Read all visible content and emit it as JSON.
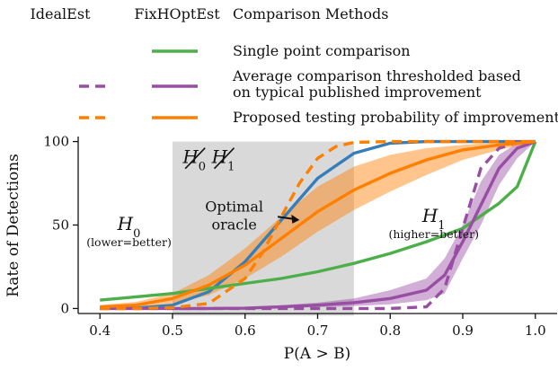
{
  "chart_data": {
    "type": "line",
    "xlabel": "P(A > B)",
    "ylabel": "Rate of Detections",
    "xlim": [
      0.37,
      1.03
    ],
    "ylim": [
      -3,
      103
    ],
    "xticks": [
      "0.4",
      "0.5",
      "0.6",
      "0.7",
      "0.8",
      "0.9",
      "1.0"
    ],
    "yticks": [
      "0",
      "50",
      "100"
    ],
    "grid": false,
    "legend": {
      "placement": "top",
      "column_headers": [
        "IdealEst",
        "FixHOptEst",
        "Comparison Methods"
      ],
      "entries": [
        {
          "label": "Single point comparison",
          "color": "#4daf4a",
          "idealest": false,
          "fixhoptest": true
        },
        {
          "label_lines": [
            "Average comparison thresholded based",
            "on typical published improvement"
          ],
          "color": "#984ea3",
          "idealest": true,
          "fixhoptest": true
        },
        {
          "label": "Proposed testing probability of improvement",
          "color": "#ff7f00",
          "idealest": true,
          "fixhoptest": true
        }
      ]
    },
    "shaded_region": {
      "x_range": [
        0.5,
        0.75
      ],
      "color": "#d9d9d9"
    },
    "region_labels": {
      "h0": {
        "main": "H",
        "sub": "0",
        "note": "(lower=better)",
        "x": 0.44,
        "y": 47
      },
      "h1": {
        "main": "H",
        "sub": "1",
        "note": "(higher=better)",
        "x": 0.86,
        "y": 52
      },
      "struck": {
        "h0_x": 0.53,
        "h1_x": 0.57,
        "y": 87
      }
    },
    "annotation": {
      "lines": [
        "Optimal",
        "oracle"
      ],
      "text_x": 0.585,
      "text_y": 58,
      "arrow_from": [
        0.645,
        55
      ],
      "arrow_to": [
        0.675,
        53
      ]
    },
    "series": [
      {
        "name": "Oracle",
        "color": "#377eb8",
        "style": "solid",
        "x": [
          0.4,
          0.45,
          0.5,
          0.55,
          0.6,
          0.65,
          0.7,
          0.75,
          0.8,
          0.85,
          0.9,
          0.95,
          1.0
        ],
        "y": [
          0,
          0.3,
          2,
          10,
          28,
          53,
          78,
          93,
          99,
          100,
          100,
          100,
          100
        ]
      },
      {
        "name": "Single point comparison (FixHOptEst)",
        "color": "#4daf4a",
        "style": "solid",
        "x": [
          0.4,
          0.45,
          0.5,
          0.55,
          0.6,
          0.65,
          0.7,
          0.75,
          0.8,
          0.85,
          0.9,
          0.95,
          0.975,
          1.0
        ],
        "y": [
          5,
          7,
          9,
          12,
          15,
          18,
          22,
          27,
          33,
          40,
          48,
          63,
          73,
          100
        ]
      },
      {
        "name": "Average comparison (FixHOptEst)",
        "color": "#984ea3",
        "style": "solid",
        "x": [
          0.4,
          0.45,
          0.5,
          0.55,
          0.6,
          0.65,
          0.7,
          0.75,
          0.8,
          0.85,
          0.875,
          0.9,
          0.925,
          0.95,
          0.975,
          1.0
        ],
        "y": [
          0,
          0,
          0,
          0,
          0.2,
          1,
          2,
          3.5,
          6,
          11,
          20,
          40,
          62,
          84,
          96,
          100
        ],
        "band_low": [
          0,
          0,
          0,
          0,
          0,
          0.3,
          0.8,
          1.5,
          2.5,
          5,
          9,
          30,
          50,
          74,
          90,
          100
        ],
        "band_high": [
          0,
          0,
          0.3,
          0.6,
          1,
          2,
          3.5,
          6,
          11,
          18,
          30,
          50,
          76,
          92,
          99,
          100
        ]
      },
      {
        "name": "Average comparison (IdealEst)",
        "color": "#984ea3",
        "style": "dashed",
        "x": [
          0.4,
          0.5,
          0.6,
          0.7,
          0.8,
          0.85,
          0.875,
          0.9,
          0.925,
          0.95,
          0.975,
          1.0
        ],
        "y": [
          0,
          0,
          0,
          0,
          0,
          1,
          12,
          48,
          84,
          96,
          99.5,
          100
        ]
      },
      {
        "name": "Proposed testing (FixHOptEst)",
        "color": "#ff7f00",
        "style": "solid",
        "x": [
          0.4,
          0.45,
          0.5,
          0.55,
          0.6,
          0.65,
          0.7,
          0.75,
          0.8,
          0.85,
          0.9,
          0.95,
          1.0
        ],
        "y": [
          1,
          2,
          6,
          14,
          26,
          42,
          58,
          71,
          81,
          89,
          95,
          98,
          100
        ],
        "band_low": [
          0.5,
          1,
          3,
          8,
          18,
          31,
          46,
          59,
          70,
          80,
          89,
          95,
          100
        ],
        "band_high": [
          2,
          4,
          9,
          20,
          36,
          55,
          73,
          85,
          92,
          96,
          98,
          99.5,
          100
        ]
      },
      {
        "name": "Proposed testing (IdealEst)",
        "color": "#ff7f00",
        "style": "dashed",
        "x": [
          0.4,
          0.45,
          0.5,
          0.55,
          0.6,
          0.625,
          0.65,
          0.675,
          0.7,
          0.725,
          0.75,
          0.8,
          0.85,
          0.9,
          0.95,
          1.0
        ],
        "y": [
          0,
          0,
          0.5,
          3,
          18,
          34,
          55,
          75,
          90,
          97,
          99.5,
          100,
          100,
          100,
          100,
          100
        ]
      }
    ]
  }
}
